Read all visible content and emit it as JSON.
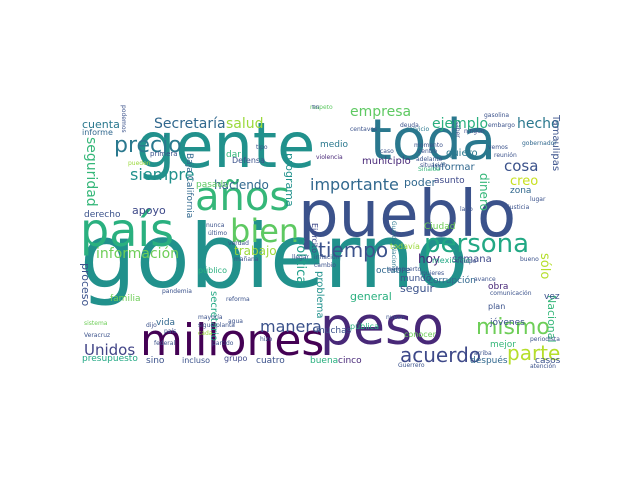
{
  "palette": [
    "#440154",
    "#3b528b",
    "#21918c",
    "#2a9d8f",
    "#5ec962",
    "#9bd93c",
    "#c7e020",
    "#31688e"
  ],
  "words": [
    {
      "text": "gobierno",
      "color": "#21918c"
    },
    {
      "text": "gente",
      "color": "#21918c"
    },
    {
      "text": "toda",
      "color": "#2a788e"
    },
    {
      "text": "pueblo",
      "color": "#3b528b"
    },
    {
      "text": "país",
      "color": "#2ab07f"
    },
    {
      "text": "peso",
      "color": "#482878"
    },
    {
      "text": "millones",
      "color": "#440154"
    },
    {
      "text": "años",
      "color": "#35b779"
    },
    {
      "text": "bien",
      "color": "#5ec962"
    },
    {
      "text": "persona",
      "color": "#22a884"
    },
    {
      "text": "tiempo",
      "color": "#3b528b"
    },
    {
      "text": "mismo",
      "color": "#6ece58"
    },
    {
      "text": "parte",
      "color": "#b5de2b"
    },
    {
      "text": "acuerdo",
      "color": "#3e4989"
    },
    {
      "text": "Secretaría",
      "color": "#31688e"
    },
    {
      "text": "precio",
      "color": "#2a788e"
    },
    {
      "text": "seguridad",
      "color": "#35b779"
    },
    {
      "text": "siempre",
      "color": "#21918c"
    },
    {
      "text": "información",
      "color": "#6ece58"
    },
    {
      "text": "manera",
      "color": "#3b528b"
    },
    {
      "text": "Unidos",
      "color": "#414487"
    },
    {
      "text": "importante",
      "color": "#31688e"
    },
    {
      "text": "salud",
      "color": "#9bd93c"
    },
    {
      "text": "empresa",
      "color": "#5ec962"
    },
    {
      "text": "ejemplo",
      "color": "#2ab07f"
    },
    {
      "text": "hecho",
      "color": "#2a788e"
    },
    {
      "text": "cosa",
      "color": "#3b528b"
    },
    {
      "text": "creo",
      "color": "#c7e020"
    },
    {
      "text": "haciendo",
      "color": "#31688e"
    },
    {
      "text": "trabajo",
      "color": "#9bd93c"
    },
    {
      "text": "programa",
      "color": "#21918c"
    },
    {
      "text": "política",
      "color": "#1f9e89"
    },
    {
      "text": "apoyo",
      "color": "#3e4989"
    },
    {
      "text": "cuenta",
      "color": "#2a788e"
    },
    {
      "text": "proceso",
      "color": "#3b528b"
    },
    {
      "text": "sólo",
      "color": "#b5de2b"
    },
    {
      "text": "dinero",
      "color": "#35b779"
    },
    {
      "text": "poder",
      "color": "#31688e"
    },
    {
      "text": "hoy",
      "color": "#482878"
    },
    {
      "text": "general",
      "color": "#2ab07f"
    },
    {
      "text": "seguir",
      "color": "#3b528b"
    },
    {
      "text": "problema",
      "color": "#21918c"
    },
    {
      "text": "semana",
      "color": "#3e4989"
    },
    {
      "text": "Ciudad",
      "color": "#6ece58"
    },
    {
      "text": "secretario",
      "color": "#22a884"
    },
    {
      "text": "Nacional",
      "color": "#35b779"
    },
    {
      "text": "Tamaulipas",
      "color": "#3b528b"
    },
    {
      "text": "informar",
      "color": "#31688e"
    },
    {
      "text": "quiero",
      "color": "#2a788e"
    },
    {
      "text": "asunto",
      "color": "#3e4989"
    },
    {
      "text": "zona",
      "color": "#31688e"
    },
    {
      "text": "derecho",
      "color": "#3b528b"
    },
    {
      "text": "municipio",
      "color": "#482878"
    },
    {
      "text": "medio",
      "color": "#2a788e"
    },
    {
      "text": "muchas",
      "color": "#3b528b"
    },
    {
      "text": "público",
      "color": "#2ab07f"
    },
    {
      "text": "pasado",
      "color": "#5ec962"
    },
    {
      "text": "dar",
      "color": "#35b779"
    },
    {
      "text": "Baja California",
      "color": "#31688e"
    },
    {
      "text": "familia",
      "color": "#6ece58"
    },
    {
      "text": "vida",
      "color": "#31688e"
    },
    {
      "text": "presupuesto",
      "color": "#22a884"
    },
    {
      "text": "sino",
      "color": "#3b528b"
    },
    {
      "text": "buena",
      "color": "#2ab07f"
    },
    {
      "text": "cuatro",
      "color": "#3b528b"
    },
    {
      "text": "cinco",
      "color": "#482878"
    },
    {
      "text": "grupo",
      "color": "#3e4989"
    },
    {
      "text": "octubre",
      "color": "#31688e"
    },
    {
      "text": "mundo",
      "color": "#3b528b"
    },
    {
      "text": "corrupción",
      "color": "#31688e"
    },
    {
      "text": "obra",
      "color": "#482878"
    },
    {
      "text": "jóvenes",
      "color": "#3b528b"
    },
    {
      "text": "mejor",
      "color": "#35b779"
    },
    {
      "text": "vez",
      "color": "#3b528b"
    },
    {
      "text": "conocer",
      "color": "#6ece58"
    },
    {
      "text": "después",
      "color": "#31688e"
    },
    {
      "text": "casos",
      "color": "#3b528b"
    },
    {
      "text": "mexicano",
      "color": "#22a884"
    },
    {
      "text": "Ejército",
      "color": "#3e4989"
    },
    {
      "text": "pública",
      "color": "#2ab07f"
    },
    {
      "text": "todavía",
      "color": "#9bd93c"
    },
    {
      "text": "incluso",
      "color": "#3b528b"
    },
    {
      "text": "centavos",
      "color": "#3b528b"
    },
    {
      "text": "servicio",
      "color": "#2a788e"
    },
    {
      "text": "ningún",
      "color": "#3e4989"
    },
    {
      "text": "embargo",
      "color": "#3b528b"
    },
    {
      "text": "gasolina",
      "color": "#3b528b"
    },
    {
      "text": "gobernador",
      "color": "#31688e"
    },
    {
      "text": "informe",
      "color": "#31688e"
    },
    {
      "text": "tipo",
      "color": "#3b528b"
    },
    {
      "text": "violencia",
      "color": "#482878"
    },
    {
      "text": "centro",
      "color": "#3b528b"
    },
    {
      "text": "Sinaloa",
      "color": "#35b779"
    },
    {
      "text": "Guardia Nacional",
      "color": "#2a788e"
    },
    {
      "text": "aeropuerto",
      "color": "#3b528b"
    },
    {
      "text": "Veracruz",
      "color": "#3b528b"
    },
    {
      "text": "federal",
      "color": "#3b528b"
    },
    {
      "text": "partido",
      "color": "#3b528b"
    },
    {
      "text": "dijo",
      "color": "#3b528b"
    },
    {
      "text": "sistema",
      "color": "#6ece58"
    },
    {
      "text": "pandemia",
      "color": "#3b528b"
    },
    {
      "text": "reforma",
      "color": "#3b528b"
    },
    {
      "text": "planta",
      "color": "#3b528b"
    },
    {
      "text": "agua",
      "color": "#3b528b"
    },
    {
      "text": "verdad",
      "color": "#3b528b"
    },
    {
      "text": "mañana",
      "color": "#3b528b"
    },
    {
      "text": "equipo",
      "color": "#3b528b"
    },
    {
      "text": "comunicación",
      "color": "#3b528b"
    },
    {
      "text": "arriba",
      "color": "#3b528b"
    },
    {
      "text": "atención",
      "color": "#3b528b"
    },
    {
      "text": "periodista",
      "color": "#3b528b"
    },
    {
      "text": "avance",
      "color": "#3b528b"
    },
    {
      "text": "Guerrero",
      "color": "#3b528b"
    },
    {
      "text": "situación",
      "color": "#3b528b"
    },
    {
      "text": "nuevo",
      "color": "#3b528b"
    },
    {
      "text": "respeto",
      "color": "#5ec962"
    },
    {
      "text": "primera",
      "color": "#3b528b"
    },
    {
      "text": "lugar",
      "color": "#3b528b"
    },
    {
      "text": "podemos",
      "color": "#3b528b"
    },
    {
      "text": "pueden",
      "color": "#9bd93c"
    },
    {
      "text": "plan",
      "color": "#3b528b"
    },
    {
      "text": "último",
      "color": "#3b528b"
    },
    {
      "text": "nunca",
      "color": "#3b528b"
    },
    {
      "text": "mujeres",
      "color": "#3b528b"
    },
    {
      "text": "llegar",
      "color": "#3b528b"
    },
    {
      "text": "inflación",
      "color": "#3b528b"
    },
    {
      "text": "cambio",
      "color": "#3b528b"
    },
    {
      "text": "país",
      "color": "#3b528b"
    },
    {
      "text": "caso",
      "color": "#3b528b"
    },
    {
      "text": "lado",
      "color": "#3b528b"
    },
    {
      "text": "vemos",
      "color": "#3b528b"
    },
    {
      "text": "mayoría",
      "color": "#3b528b"
    },
    {
      "text": "sigue",
      "color": "#3b528b"
    },
    {
      "text": "cada",
      "color": "#9bd93c"
    },
    {
      "text": "Defensa",
      "color": "#3b528b"
    },
    {
      "text": "hizo",
      "color": "#3b528b"
    },
    {
      "text": "momento",
      "color": "#3b528b"
    },
    {
      "text": "saber",
      "color": "#3b528b"
    },
    {
      "text": "reunión",
      "color": "#3b528b"
    },
    {
      "text": "justicia",
      "color": "#3b528b"
    },
    {
      "text": "adelante",
      "color": "#3b528b"
    },
    {
      "text": "bueno",
      "color": "#3b528b"
    },
    {
      "text": "fin",
      "color": "#3b528b"
    },
    {
      "text": "deuda",
      "color": "#3b528b"
    }
  ]
}
